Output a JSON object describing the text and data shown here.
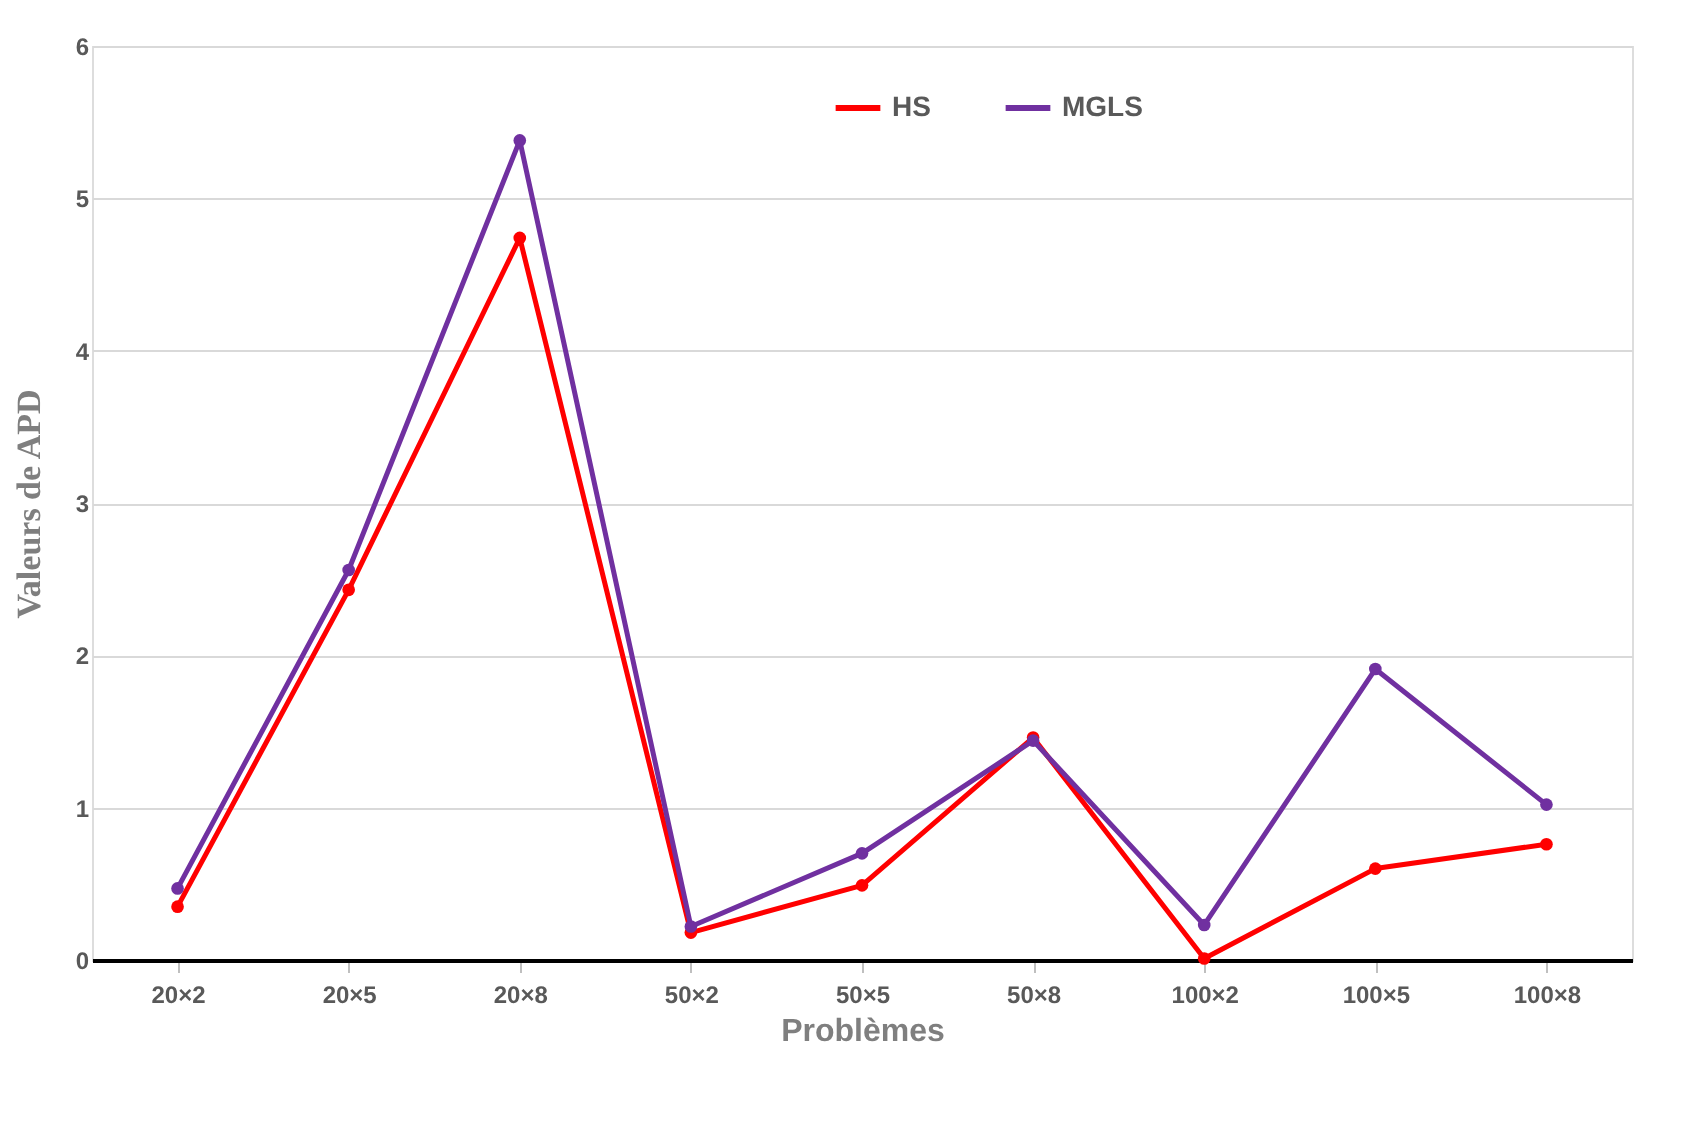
{
  "chart_data": {
    "type": "line",
    "xlabel": "Problèmes",
    "ylabel": "Valeurs de APD",
    "categories": [
      "20×2",
      "20×5",
      "20×8",
      "50×2",
      "50×5",
      "50×8",
      "100×2",
      "100×5",
      "100×8"
    ],
    "series": [
      {
        "name": "HS",
        "color": "#ff0000",
        "values": [
          0.35,
          2.43,
          4.74,
          0.18,
          0.49,
          1.46,
          0.01,
          0.6,
          0.76
        ]
      },
      {
        "name": "MGLS",
        "color": "#7030a0",
        "values": [
          0.47,
          2.56,
          5.38,
          0.22,
          0.7,
          1.44,
          0.23,
          1.91,
          1.02
        ]
      }
    ],
    "ylim": [
      0,
      6
    ],
    "yticks": [
      0,
      1,
      2,
      3,
      4,
      5,
      6
    ],
    "grid": "y",
    "legend": "top",
    "marker": "circle",
    "line_style": "solid"
  }
}
